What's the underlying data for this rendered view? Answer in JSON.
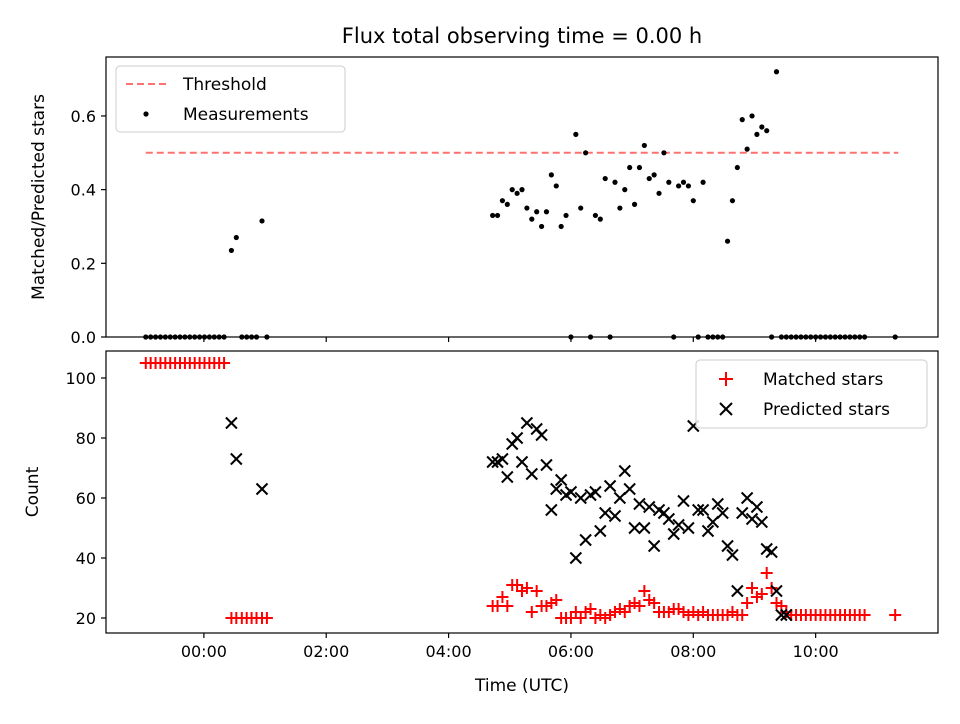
{
  "chart_data": [
    {
      "type": "scatter",
      "title": "Flux total observing time = 0.00 h",
      "xlabel": "",
      "ylabel": "Matched/Predicted stars",
      "xlim": [
        -1.6,
        12.0
      ],
      "ylim": [
        0.0,
        0.76
      ],
      "xtick_hours": [
        0,
        2,
        4,
        6,
        8,
        10
      ],
      "yticks": [
        0.0,
        0.2,
        0.4,
        0.6
      ],
      "ytick_labels": [
        "0.0",
        "0.2",
        "0.4",
        "0.6"
      ],
      "grid": false,
      "legend": {
        "position": "top-left",
        "entries": [
          "Threshold",
          "Measurements"
        ]
      },
      "threshold": {
        "name": "Threshold",
        "value": 0.5,
        "x_range": [
          -0.95,
          11.35
        ],
        "color": "#ff7070"
      },
      "series": [
        {
          "name": "Measurements",
          "color": "#000000",
          "x": [
            -0.95,
            -0.87,
            -0.79,
            -0.71,
            -0.63,
            -0.55,
            -0.47,
            -0.39,
            -0.31,
            -0.23,
            -0.15,
            -0.07,
            0.01,
            0.09,
            0.17,
            0.25,
            0.33,
            0.45,
            0.53,
            0.62,
            0.7,
            0.78,
            0.86,
            0.95,
            1.03,
            4.72,
            4.8,
            4.88,
            4.96,
            5.04,
            5.12,
            5.2,
            5.28,
            5.36,
            5.44,
            5.52,
            5.6,
            5.68,
            5.76,
            5.84,
            5.92,
            6.0,
            6.08,
            6.16,
            6.24,
            6.32,
            6.4,
            6.48,
            6.56,
            6.64,
            6.72,
            6.8,
            6.88,
            6.96,
            7.04,
            7.12,
            7.2,
            7.28,
            7.36,
            7.44,
            7.52,
            7.6,
            7.68,
            7.76,
            7.84,
            7.92,
            8.0,
            8.08,
            8.16,
            8.24,
            8.32,
            8.4,
            8.48,
            8.56,
            8.64,
            8.72,
            8.8,
            8.88,
            8.96,
            9.04,
            9.12,
            9.2,
            9.28,
            9.36,
            9.44,
            9.52,
            9.6,
            9.68,
            9.76,
            9.84,
            9.92,
            10.0,
            10.08,
            10.16,
            10.24,
            10.32,
            10.4,
            10.48,
            10.56,
            10.64,
            10.72,
            10.8,
            11.3
          ],
          "y": [
            0,
            0,
            0,
            0,
            0,
            0,
            0,
            0,
            0,
            0,
            0,
            0,
            0,
            0,
            0,
            0,
            0,
            0.235,
            0.27,
            0,
            0,
            0,
            0,
            0.315,
            0,
            0.33,
            0.33,
            0.37,
            0.36,
            0.4,
            0.39,
            0.4,
            0.35,
            0.32,
            0.34,
            0.3,
            0.34,
            0.44,
            0.41,
            0.3,
            0.33,
            0,
            0.55,
            0.35,
            0.5,
            0,
            0.33,
            0.32,
            0.43,
            0,
            0.42,
            0.35,
            0.4,
            0.46,
            0.36,
            0.46,
            0.52,
            0.43,
            0.44,
            0.39,
            0.5,
            0.42,
            0,
            0.41,
            0.42,
            0.41,
            0.37,
            0,
            0.42,
            0,
            0,
            0,
            0,
            0.26,
            0.37,
            0.46,
            0.59,
            0.51,
            0.6,
            0.55,
            0.57,
            0.56,
            0,
            0.72,
            0,
            0,
            0,
            0,
            0,
            0,
            0,
            0,
            0,
            0,
            0,
            0,
            0,
            0,
            0,
            0,
            0,
            0,
            0
          ]
        }
      ]
    },
    {
      "type": "scatter",
      "title": "",
      "xlabel": "Time (UTC)",
      "ylabel": "Count",
      "xlim": [
        -1.6,
        12.0
      ],
      "ylim": [
        15,
        109
      ],
      "xtick_hours": [
        0,
        2,
        4,
        6,
        8,
        10
      ],
      "xtick_labels": [
        "00:00",
        "02:00",
        "04:00",
        "06:00",
        "08:00",
        "10:00"
      ],
      "yticks": [
        20,
        40,
        60,
        80,
        100
      ],
      "ytick_labels": [
        "20",
        "40",
        "60",
        "80",
        "100"
      ],
      "grid": false,
      "legend": {
        "position": "top-right",
        "entries": [
          "Matched stars",
          "Predicted stars"
        ]
      },
      "series": [
        {
          "name": "Matched stars",
          "marker": "+",
          "color": "#ff0000",
          "x": [
            -0.95,
            -0.87,
            -0.79,
            -0.71,
            -0.63,
            -0.55,
            -0.47,
            -0.39,
            -0.31,
            -0.23,
            -0.15,
            -0.07,
            0.01,
            0.09,
            0.17,
            0.25,
            0.33,
            0.45,
            0.53,
            0.62,
            0.7,
            0.78,
            0.86,
            0.95,
            1.03,
            4.72,
            4.8,
            4.88,
            4.96,
            5.04,
            5.12,
            5.2,
            5.28,
            5.36,
            5.44,
            5.52,
            5.6,
            5.68,
            5.76,
            5.84,
            5.92,
            6.0,
            6.08,
            6.16,
            6.24,
            6.32,
            6.4,
            6.48,
            6.56,
            6.64,
            6.72,
            6.8,
            6.88,
            6.96,
            7.04,
            7.12,
            7.2,
            7.28,
            7.36,
            7.44,
            7.52,
            7.6,
            7.68,
            7.76,
            7.84,
            7.92,
            8.0,
            8.08,
            8.16,
            8.24,
            8.32,
            8.4,
            8.48,
            8.56,
            8.64,
            8.72,
            8.8,
            8.88,
            8.96,
            9.04,
            9.12,
            9.2,
            9.28,
            9.36,
            9.44,
            9.52,
            9.6,
            9.68,
            9.76,
            9.84,
            9.92,
            10.0,
            10.08,
            10.16,
            10.24,
            10.32,
            10.4,
            10.48,
            10.56,
            10.64,
            10.72,
            10.8,
            11.3
          ],
          "y": [
            105,
            105,
            105,
            105,
            105,
            105,
            105,
            105,
            105,
            105,
            105,
            105,
            105,
            105,
            105,
            105,
            105,
            20,
            20,
            20,
            20,
            20,
            20,
            20,
            20,
            24,
            24,
            27,
            24,
            31,
            31,
            29,
            30,
            22,
            29,
            24,
            24,
            25,
            26,
            20,
            20,
            20,
            22,
            20,
            22,
            23,
            20,
            21,
            20,
            21,
            22,
            23,
            22,
            24,
            25,
            24,
            29,
            26,
            25,
            22,
            22,
            22,
            23,
            23,
            22,
            21,
            22,
            21,
            22,
            21,
            21,
            21,
            21,
            21,
            22,
            21,
            21,
            25,
            30,
            27,
            28,
            35,
            30,
            25,
            24,
            22,
            21,
            21,
            21,
            21,
            21,
            21,
            21,
            21,
            21,
            21,
            21,
            21,
            21,
            21,
            21,
            21,
            21
          ]
        },
        {
          "name": "Predicted stars",
          "marker": "x",
          "color": "#000000",
          "x": [
            0.45,
            0.53,
            0.95,
            4.72,
            4.8,
            4.88,
            4.96,
            5.04,
            5.12,
            5.2,
            5.28,
            5.36,
            5.44,
            5.52,
            5.6,
            5.68,
            5.76,
            5.84,
            5.92,
            6.0,
            6.08,
            6.16,
            6.24,
            6.32,
            6.4,
            6.48,
            6.56,
            6.64,
            6.72,
            6.8,
            6.88,
            6.96,
            7.04,
            7.12,
            7.2,
            7.28,
            7.36,
            7.44,
            7.52,
            7.6,
            7.68,
            7.76,
            7.84,
            7.92,
            8.0,
            8.08,
            8.16,
            8.24,
            8.32,
            8.4,
            8.48,
            8.56,
            8.64,
            8.72,
            8.8,
            8.88,
            8.96,
            9.04,
            9.12,
            9.2,
            9.28,
            9.36,
            9.44,
            9.52
          ],
          "y": [
            85,
            73,
            63,
            72,
            72,
            73,
            67,
            78,
            80,
            72,
            85,
            68,
            83,
            81,
            71,
            56,
            63,
            66,
            61,
            62,
            40,
            60,
            46,
            61,
            62,
            49,
            55,
            64,
            54,
            60,
            69,
            63,
            50,
            58,
            50,
            57,
            44,
            56,
            55,
            53,
            48,
            51,
            59,
            50,
            84,
            56,
            56,
            49,
            52,
            58,
            55,
            44,
            41,
            29,
            55,
            60,
            53,
            57,
            52,
            43,
            42,
            29,
            21,
            21
          ]
        }
      ]
    }
  ]
}
